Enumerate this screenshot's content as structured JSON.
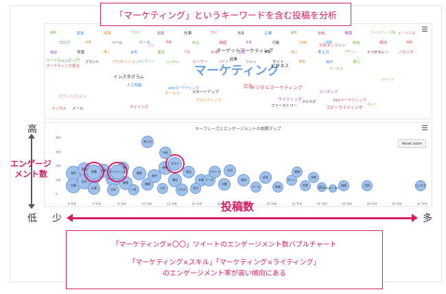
{
  "header": {
    "title": "「マーケティング」というキーワードを含む投稿を分析"
  },
  "word_cloud": {
    "words": [
      {
        "text": "マーケティング",
        "color": "#6a9fe0"
      },
      {
        "text": "ターゲットマーケティング",
        "color": "#333333"
      },
      {
        "text": "デジタルマーケティング",
        "color": "#e0457b"
      },
      {
        "text": "マーケティング入門",
        "color": "#6cbf3c"
      },
      {
        "text": "マーケティング担当",
        "color": "#d94848"
      },
      {
        "text": "アフィリエイト",
        "color": "#e07ac0"
      },
      {
        "text": "インスタグラム",
        "color": "#333333"
      },
      {
        "text": "ビジネス",
        "color": "#333333"
      },
      {
        "text": "コピーライティング",
        "color": "#d94848"
      },
      {
        "text": "ライティング",
        "color": "#9b59b6"
      },
      {
        "text": "ファーストワー",
        "color": "#333333"
      },
      {
        "text": "スタートアップ",
        "color": "#333333"
      },
      {
        "text": "ブランディング",
        "color": "#e08a2e"
      },
      {
        "text": "人工知能",
        "color": "#3a8ee6"
      },
      {
        "text": "webマーケティング",
        "color": "#3a8ee6"
      },
      {
        "text": "タイミング",
        "color": "#e0457b"
      },
      {
        "text": "セールス",
        "color": "#e08a2e"
      },
      {
        "text": "ランキング",
        "color": "#9b59b6"
      },
      {
        "text": "ネット",
        "color": "#6cbf3c"
      },
      {
        "text": "メルマガ",
        "color": "#333333"
      },
      {
        "text": "SNSマーケティング",
        "color": "#e0457b"
      },
      {
        "text": "サービス",
        "color": "#e08a2e"
      },
      {
        "text": "ゲーアフィ",
        "color": "#333333"
      },
      {
        "text": "文系オンライン",
        "color": "#d94848"
      },
      {
        "text": "広告",
        "color": "#d94848"
      },
      {
        "text": "ツイート",
        "color": "#6cbf3c"
      },
      {
        "text": "メール",
        "color": "#333333"
      },
      {
        "text": "メンタル",
        "color": "#d94848"
      },
      {
        "text": "プロ",
        "color": "#e07ac0"
      },
      {
        "text": "起業",
        "color": "#333333"
      },
      {
        "text": "戦略",
        "color": "#6cbf3c"
      },
      {
        "text": "集客",
        "color": "#3a8ee6"
      },
      {
        "text": "成長",
        "color": "#e08a2e"
      },
      {
        "text": "ブログ",
        "color": "#6cbf3c"
      },
      {
        "text": "副業",
        "color": "#9b59b6"
      },
      {
        "text": "仕事",
        "color": "#333333"
      },
      {
        "text": "学び",
        "color": "#e0457b"
      },
      {
        "text": "日本",
        "color": "#333333"
      },
      {
        "text": "企業",
        "color": "#3a8ee6"
      },
      {
        "text": "顧客",
        "color": "#6cbf3c"
      },
      {
        "text": "資格",
        "color": "#d94848"
      },
      {
        "text": "情報",
        "color": "#9b59b6"
      },
      {
        "text": "マーケティング研",
        "color": "#6cbf3c"
      },
      {
        "text": "ビジネス系",
        "color": "#e07ac0"
      },
      {
        "text": "ブログ",
        "color": "#3a8ee6"
      },
      {
        "text": "女性",
        "color": "#e08a2e"
      },
      {
        "text": "ツール",
        "color": "#333333"
      },
      {
        "text": "データ",
        "color": "#3a8ee6"
      },
      {
        "text": "市場",
        "color": "#e0457b"
      },
      {
        "text": "商品",
        "color": "#6cbf3c"
      },
      {
        "text": "価値",
        "color": "#d94848"
      },
      {
        "text": "未来",
        "color": "#9b59b6"
      },
      {
        "text": "行動",
        "color": "#333333"
      },
      {
        "text": "分析",
        "color": "#e08a2e"
      },
      {
        "text": "経験",
        "color": "#3a8ee6"
      },
      {
        "text": "勉強",
        "color": "#6cbf3c"
      },
      {
        "text": "発信",
        "color": "#e0457b"
      },
      {
        "text": "結果",
        "color": "#d94848"
      },
      {
        "text": "相談",
        "color": "#9b59b6"
      },
      {
        "text": "学習",
        "color": "#333333"
      },
      {
        "text": "購入",
        "color": "#e08a2e"
      },
      {
        "text": "世界",
        "color": "#3a8ee6"
      },
      {
        "text": "運用",
        "color": "#6cbf3c"
      },
      {
        "text": "人生",
        "color": "#e0457b"
      },
      {
        "text": "手法",
        "color": "#d94848"
      },
      {
        "text": "活用",
        "color": "#9b59b6"
      },
      {
        "text": "事業",
        "color": "#333333"
      },
      {
        "text": "売上",
        "color": "#e08a2e"
      },
      {
        "text": "考え方",
        "color": "#3a8ee6"
      },
      {
        "text": "デザイン",
        "color": "#6cbf3c"
      },
      {
        "text": "コンテンツ",
        "color": "#e0457b"
      },
      {
        "text": "ノウハウ",
        "color": "#d94848"
      },
      {
        "text": "イベント",
        "color": "#9b59b6"
      },
      {
        "text": "ブランド",
        "color": "#333333"
      },
      {
        "text": "プロモーション",
        "color": "#e08a2e"
      },
      {
        "text": "オンライン",
        "color": "#3a8ee6"
      },
      {
        "text": "コンサル",
        "color": "#6cbf3c"
      },
      {
        "text": "ユーザー",
        "color": "#e0457b"
      },
      {
        "text": "レビュー",
        "color": "#d94848"
      },
      {
        "text": "スキル",
        "color": "#9b59b6"
      },
      {
        "text": "サイト",
        "color": "#333333"
      },
      {
        "text": "動画",
        "color": "#e08a2e"
      },
      {
        "text": "毎日",
        "color": "#3a8ee6"
      },
      {
        "text": "個人",
        "color": "#6cbf3c"
      }
    ]
  },
  "bubble_chart": {
    "title": "キーフレーズとエンゲージメントの相関マップ",
    "reset_zoom_label": "Reset zoom",
    "menu_icon": "hamburger-menu-icon",
    "y_ticks": [
      "400",
      "300",
      "200",
      "100",
      "0"
    ],
    "x_ticks": [
      "4.7k件",
      "6.7k件",
      "8.7k件",
      "10.7k件",
      "12.7k件",
      "14.7k件",
      "16.7k件",
      "18.7k件",
      "20.7k件",
      "22.7k件",
      "24.7k件",
      "26.7k件",
      "28.7k件",
      "30.7k件",
      "34.7k件"
    ],
    "bubbles": [
      {
        "label": "男性",
        "highlight": false
      },
      {
        "label": "企業",
        "highlight": false
      },
      {
        "label": "副業",
        "highlight": false
      },
      {
        "label": "広告",
        "highlight": false
      },
      {
        "label": "起業",
        "highlight": false
      },
      {
        "label": "仕事",
        "highlight": false
      },
      {
        "label": "企業",
        "highlight": false
      },
      {
        "label": "コンテンツ",
        "highlight": false
      },
      {
        "label": "日本",
        "highlight": false
      },
      {
        "label": "営業",
        "highlight": false
      },
      {
        "label": "集客",
        "highlight": false
      },
      {
        "label": "人気",
        "highlight": false
      },
      {
        "label": "顧客",
        "highlight": false
      },
      {
        "label": "情報",
        "highlight": false
      },
      {
        "label": "女性",
        "highlight": false
      },
      {
        "label": "人生",
        "highlight": false
      },
      {
        "label": "戦略",
        "highlight": false
      },
      {
        "label": "運用",
        "highlight": false
      },
      {
        "label": "ブログ",
        "highlight": false
      },
      {
        "label": "商品",
        "highlight": false
      },
      {
        "label": "市場",
        "highlight": false
      },
      {
        "label": "ライティング",
        "highlight": true
      },
      {
        "label": "スキル",
        "highlight": true
      },
      {
        "label": "経験",
        "highlight": true
      },
      {
        "label": "考え方",
        "highlight": false
      },
      {
        "label": "分析",
        "highlight": false
      },
      {
        "label": "学び",
        "highlight": false
      },
      {
        "label": "データ",
        "highlight": false
      },
      {
        "label": "ブランド",
        "highlight": false
      },
      {
        "label": "行動",
        "highlight": false
      },
      {
        "label": "大切",
        "highlight": false
      },
      {
        "label": "発信",
        "highlight": false
      },
      {
        "label": "ツール",
        "highlight": false
      },
      {
        "label": "成長",
        "highlight": false
      },
      {
        "label": "勉強",
        "highlight": false
      },
      {
        "label": "ネット",
        "highlight": false
      },
      {
        "label": "資格",
        "highlight": false
      },
      {
        "label": "世界",
        "highlight": false
      },
      {
        "label": "未来",
        "highlight": false
      },
      {
        "label": "売上",
        "highlight": false
      },
      {
        "label": "デジタルマーケティング",
        "highlight": false
      },
      {
        "label": "価値",
        "highlight": false
      },
      {
        "label": "活用",
        "highlight": false
      },
      {
        "label": "ビジネス",
        "highlight": false
      }
    ]
  },
  "axis": {
    "y_label": "エンゲージメント数",
    "x_label": "投稿数",
    "high": "高",
    "low": "低",
    "few": "少",
    "many": "多"
  },
  "caption": {
    "line1": "「マーケティング×〇〇」ツイートのエンゲージメント数バブルチャート",
    "line2": "「マーケティング×スキル」「マーケティング×ライティング」",
    "line3": "のエンゲージメント率が高い傾向にある"
  },
  "colors": {
    "accent": "#d81b60",
    "bubble_fill": "#9fc1ec",
    "bubble_stroke": "#6f9bd6"
  }
}
